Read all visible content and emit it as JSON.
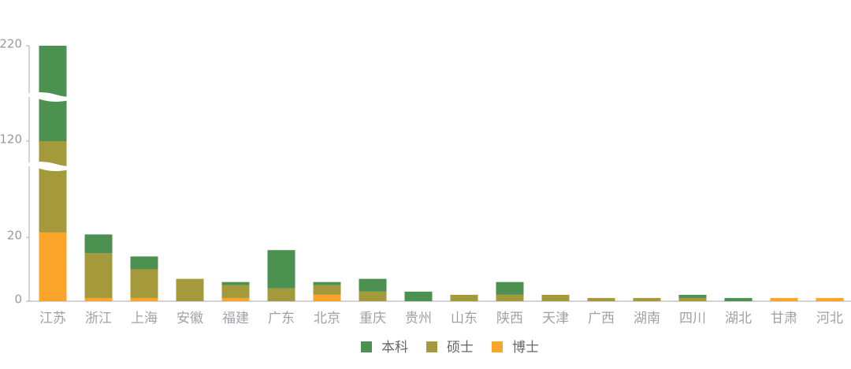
{
  "chart_data": {
    "type": "stacked_bar",
    "categories": [
      "江苏",
      "浙江",
      "上海",
      "安徽",
      "福建",
      "广东",
      "北京",
      "重庆",
      "贵州",
      "山东",
      "陕西",
      "天津",
      "广西",
      "湖南",
      "四川",
      "湖北",
      "甘肃",
      "河北"
    ],
    "series": [
      {
        "name": "本科",
        "color": "#4c9150",
        "values": [
          100,
          8,
          4,
          0,
          1,
          12,
          1,
          4,
          3,
          0,
          4,
          0,
          0,
          0,
          1,
          1,
          0,
          0
        ]
      },
      {
        "name": "硕士",
        "color": "#a4993b",
        "values": [
          95,
          14,
          9,
          7,
          4,
          4,
          3,
          3,
          0,
          2,
          2,
          2,
          1,
          1,
          1,
          0,
          0,
          0
        ]
      },
      {
        "name": "博士",
        "color": "#fba42a",
        "values": [
          25,
          1,
          1,
          0,
          1,
          0,
          2,
          0,
          0,
          0,
          0,
          0,
          0,
          0,
          0,
          0,
          1,
          1
        ]
      }
    ],
    "ylim": [
      0,
      220
    ],
    "yticks": [
      0,
      20,
      120,
      220
    ],
    "axis_break": true
  }
}
